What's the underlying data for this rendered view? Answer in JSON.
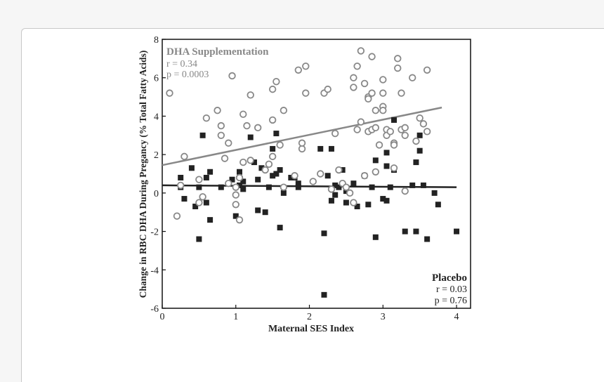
{
  "chart_data": {
    "type": "scatter",
    "xlabel": "Maternal SES Index",
    "ylabel": "Change in RBC DHA During Pregancy (% Total Fatty Acids)",
    "xlim": [
      0,
      4.2
    ],
    "ylim": [
      -6,
      8
    ],
    "xticks": [
      "0",
      "1",
      "2",
      "3",
      "4"
    ],
    "yticks": [
      "-6",
      "-4",
      "-2",
      "0",
      "2",
      "4",
      "6",
      "8"
    ],
    "grid": false,
    "colors": {
      "dha": "#888888",
      "placebo": "#222222",
      "axis": "#111111"
    },
    "series": [
      {
        "name": "DHA Supplementation",
        "marker": "open-circle",
        "stats": {
          "r": "r = 0.34",
          "p": "p = 0.0003"
        },
        "trend": {
          "x": [
            0,
            3.8
          ],
          "y": [
            1.45,
            4.45
          ]
        },
        "points": [
          [
            0.1,
            5.2
          ],
          [
            0.2,
            -1.2
          ],
          [
            0.25,
            0.4
          ],
          [
            0.3,
            1.9
          ],
          [
            0.5,
            0.7
          ],
          [
            0.5,
            -0.5
          ],
          [
            0.55,
            -0.2
          ],
          [
            0.6,
            3.9
          ],
          [
            0.75,
            4.3
          ],
          [
            0.8,
            3.5
          ],
          [
            0.8,
            3.0
          ],
          [
            0.85,
            1.8
          ],
          [
            0.9,
            2.6
          ],
          [
            0.9,
            0.5
          ],
          [
            0.95,
            6.1
          ],
          [
            1.0,
            0.3
          ],
          [
            1.0,
            -0.1
          ],
          [
            1.0,
            -0.6
          ],
          [
            1.05,
            -1.4
          ],
          [
            1.05,
            0.8
          ],
          [
            1.1,
            4.1
          ],
          [
            1.1,
            1.6
          ],
          [
            1.15,
            3.5
          ],
          [
            1.2,
            5.1
          ],
          [
            1.2,
            1.7
          ],
          [
            1.3,
            3.4
          ],
          [
            1.4,
            1.2
          ],
          [
            1.45,
            1.5
          ],
          [
            1.5,
            1.9
          ],
          [
            1.5,
            3.8
          ],
          [
            1.5,
            5.4
          ],
          [
            1.55,
            5.8
          ],
          [
            1.6,
            2.5
          ],
          [
            1.65,
            4.3
          ],
          [
            1.65,
            0.3
          ],
          [
            1.8,
            0.9
          ],
          [
            1.85,
            6.4
          ],
          [
            1.9,
            2.3
          ],
          [
            1.9,
            2.6
          ],
          [
            1.95,
            6.6
          ],
          [
            1.95,
            5.2
          ],
          [
            2.05,
            0.6
          ],
          [
            2.15,
            1.0
          ],
          [
            2.2,
            5.2
          ],
          [
            2.25,
            5.4
          ],
          [
            2.35,
            3.1
          ],
          [
            2.4,
            1.2
          ],
          [
            2.45,
            0.5
          ],
          [
            2.5,
            0.3
          ],
          [
            2.6,
            5.5
          ],
          [
            2.6,
            6.0
          ],
          [
            2.65,
            3.3
          ],
          [
            2.65,
            6.6
          ],
          [
            2.7,
            3.7
          ],
          [
            2.7,
            7.4
          ],
          [
            2.75,
            5.7
          ],
          [
            2.8,
            5.0
          ],
          [
            2.8,
            4.9
          ],
          [
            2.8,
            3.2
          ],
          [
            2.85,
            7.1
          ],
          [
            2.85,
            5.2
          ],
          [
            2.85,
            3.3
          ],
          [
            2.9,
            4.3
          ],
          [
            2.9,
            3.4
          ],
          [
            2.9,
            1.1
          ],
          [
            2.95,
            2.5
          ],
          [
            3.0,
            5.9
          ],
          [
            3.0,
            5.2
          ],
          [
            3.0,
            4.5
          ],
          [
            3.0,
            4.3
          ],
          [
            3.05,
            3.3
          ],
          [
            3.05,
            3.0
          ],
          [
            3.1,
            3.2
          ],
          [
            3.15,
            2.6
          ],
          [
            3.15,
            2.5
          ],
          [
            3.15,
            1.3
          ],
          [
            3.2,
            7.0
          ],
          [
            3.2,
            6.5
          ],
          [
            3.25,
            5.2
          ],
          [
            3.25,
            3.3
          ],
          [
            3.3,
            3.4
          ],
          [
            3.3,
            3.0
          ],
          [
            3.3,
            0.1
          ],
          [
            3.4,
            6.0
          ],
          [
            3.45,
            2.7
          ],
          [
            3.5,
            3.9
          ],
          [
            3.55,
            3.6
          ],
          [
            3.6,
            3.2
          ],
          [
            3.6,
            6.4
          ],
          [
            2.3,
            0.2
          ],
          [
            2.55,
            0.0
          ],
          [
            2.6,
            -0.5
          ],
          [
            2.75,
            0.9
          ]
        ]
      },
      {
        "name": "Placebo",
        "marker": "filled-square",
        "stats": {
          "r": "r = 0.03",
          "p": "p = 0.76"
        },
        "trend": {
          "x": [
            0,
            4.0
          ],
          "y": [
            0.4,
            0.3
          ]
        },
        "points": [
          [
            0.25,
            0.8
          ],
          [
            0.25,
            0.3
          ],
          [
            0.3,
            -0.3
          ],
          [
            0.4,
            1.3
          ],
          [
            0.45,
            -0.7
          ],
          [
            0.5,
            -2.4
          ],
          [
            0.5,
            0.3
          ],
          [
            0.55,
            3.0
          ],
          [
            0.6,
            0.8
          ],
          [
            0.6,
            -0.5
          ],
          [
            0.65,
            1.1
          ],
          [
            0.65,
            -1.4
          ],
          [
            0.8,
            0.3
          ],
          [
            0.95,
            0.7
          ],
          [
            1.0,
            -1.2
          ],
          [
            1.05,
            1.1
          ],
          [
            1.05,
            0.4
          ],
          [
            1.1,
            0.6
          ],
          [
            1.1,
            0.2
          ],
          [
            1.2,
            2.9
          ],
          [
            1.25,
            1.6
          ],
          [
            1.3,
            -0.9
          ],
          [
            1.3,
            0.7
          ],
          [
            1.35,
            1.3
          ],
          [
            1.4,
            -1.0
          ],
          [
            1.45,
            0.3
          ],
          [
            1.5,
            2.3
          ],
          [
            1.5,
            0.9
          ],
          [
            1.55,
            3.1
          ],
          [
            1.55,
            1.0
          ],
          [
            1.6,
            1.2
          ],
          [
            1.6,
            -1.8
          ],
          [
            1.65,
            0.0
          ],
          [
            1.75,
            0.8
          ],
          [
            1.8,
            0.8
          ],
          [
            1.85,
            0.5
          ],
          [
            1.85,
            0.3
          ],
          [
            2.15,
            2.3
          ],
          [
            2.2,
            -5.3
          ],
          [
            2.2,
            -2.1
          ],
          [
            2.25,
            0.9
          ],
          [
            2.3,
            2.3
          ],
          [
            2.3,
            -0.4
          ],
          [
            2.35,
            0.4
          ],
          [
            2.4,
            0.3
          ],
          [
            2.45,
            1.2
          ],
          [
            2.5,
            0.1
          ],
          [
            2.5,
            -0.5
          ],
          [
            2.6,
            0.5
          ],
          [
            2.65,
            -0.7
          ],
          [
            2.75,
            0.9
          ],
          [
            2.8,
            -0.6
          ],
          [
            2.85,
            0.3
          ],
          [
            2.9,
            1.7
          ],
          [
            2.9,
            -2.3
          ],
          [
            3.0,
            -0.3
          ],
          [
            3.05,
            2.1
          ],
          [
            3.05,
            1.4
          ],
          [
            3.1,
            0.3
          ],
          [
            3.15,
            3.8
          ],
          [
            3.15,
            1.2
          ],
          [
            3.3,
            -2.0
          ],
          [
            3.4,
            0.4
          ],
          [
            3.45,
            1.6
          ],
          [
            3.45,
            -2.0
          ],
          [
            3.5,
            3.0
          ],
          [
            3.5,
            2.2
          ],
          [
            3.55,
            0.4
          ],
          [
            3.6,
            -2.4
          ],
          [
            3.7,
            0.0
          ],
          [
            3.75,
            -0.6
          ],
          [
            4.0,
            -2.0
          ],
          [
            3.05,
            -0.4
          ],
          [
            2.35,
            -0.1
          ]
        ]
      }
    ]
  }
}
